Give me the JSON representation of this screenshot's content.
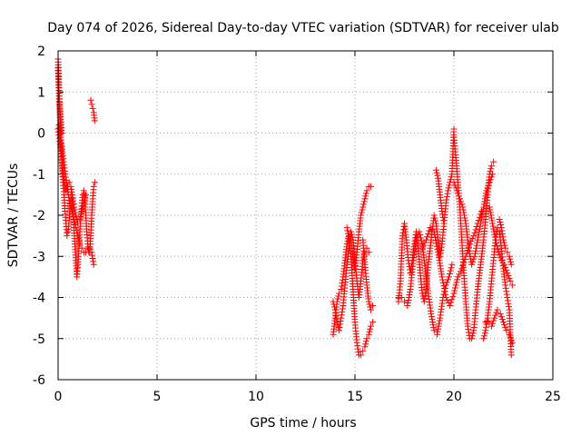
{
  "chart_data": {
    "type": "scatter",
    "title": "Day 074 of 2026, Sidereal Day-to-day VTEC variation (SDTVAR) for receiver ulab",
    "xlabel": "GPS time / hours",
    "ylabel": "SDTVAR / TECUs",
    "xlim": [
      0,
      25
    ],
    "ylim": [
      -6,
      2
    ],
    "xticks": [
      0,
      5,
      10,
      15,
      20,
      25
    ],
    "yticks": [
      -6,
      -5,
      -4,
      -3,
      -2,
      -1,
      0,
      1,
      2
    ],
    "grid": true,
    "marker": "+",
    "color": "#ff0000",
    "series": [
      {
        "name": "SDTVAR",
        "segments": [
          {
            "x": [
              0.0,
              0.05,
              0.1,
              0.15,
              0.2,
              0.25,
              0.3,
              0.35,
              0.4,
              0.45,
              0.5,
              0.55,
              0.6,
              0.65,
              0.7,
              0.75,
              0.8,
              0.85,
              0.9,
              0.95,
              1.0,
              1.05,
              1.1,
              1.15,
              1.2,
              1.25,
              1.3,
              1.35,
              1.4,
              1.45,
              1.5,
              1.55,
              1.6,
              1.65,
              1.7,
              1.75,
              1.8,
              1.85
            ],
            "y": [
              1.6,
              0.9,
              0.3,
              -0.3,
              -0.8,
              -1.2,
              -1.5,
              -1.9,
              -2.2,
              -2.5,
              -2.4,
              -2.2,
              -1.8,
              -1.5,
              -1.6,
              -1.9,
              -2.3,
              -2.7,
              -3.1,
              -3.5,
              -3.2,
              -2.8,
              -2.4,
              -2.0,
              -1.7,
              -1.5,
              -1.4,
              -1.6,
              -2.0,
              -2.4,
              -2.7,
              -2.9,
              -2.9,
              -2.5,
              -2.0,
              -1.6,
              -1.3,
              -1.2
            ]
          },
          {
            "x": [
              0.05,
              0.12,
              0.2,
              0.28,
              0.36,
              0.44,
              0.52,
              0.6,
              0.7,
              0.8,
              0.9,
              1.0,
              1.1,
              1.2,
              1.3,
              1.4,
              1.5,
              1.6,
              1.7,
              1.8
            ],
            "y": [
              0.2,
              -0.1,
              -0.4,
              -0.7,
              -1.0,
              -1.3,
              -1.5,
              -1.7,
              -1.9,
              -2.1,
              -2.3,
              -2.5,
              -2.7,
              -2.8,
              -2.9,
              -2.9,
              -2.8,
              -2.8,
              -2.9,
              -3.2
            ]
          },
          {
            "x": [
              0.0,
              0.08,
              0.16,
              0.24,
              0.32,
              0.4,
              0.48,
              0.56,
              0.64,
              0.72,
              0.8,
              0.9,
              1.0,
              1.1,
              1.2,
              1.3,
              1.4
            ],
            "y": [
              0.1,
              -0.2,
              -0.5,
              -0.9,
              -1.2,
              -1.4,
              -1.3,
              -1.2,
              -1.3,
              -1.5,
              -1.8,
              -2.0,
              -2.2,
              -2.1,
              -1.9,
              -1.7,
              -1.5
            ]
          },
          {
            "x": [
              0.0,
              0.03,
              0.06,
              0.09,
              0.12,
              0.15,
              0.18
            ],
            "y": [
              1.8,
              1.3,
              0.9,
              0.6,
              0.4,
              0.2,
              0.0
            ]
          },
          {
            "x": [
              1.65,
              1.7,
              1.75,
              1.8,
              1.85
            ],
            "y": [
              0.8,
              0.7,
              0.6,
              0.5,
              0.3
            ]
          },
          {
            "x": [
              13.9,
              14.0,
              14.1,
              14.2,
              14.3,
              14.4,
              14.5,
              14.6,
              14.7,
              14.8,
              14.9,
              15.0,
              15.1,
              15.2,
              15.3,
              15.4,
              15.5,
              15.6,
              15.7,
              15.8
            ],
            "y": [
              -4.9,
              -4.5,
              -4.1,
              -3.9,
              -3.8,
              -3.5,
              -3.1,
              -2.7,
              -2.5,
              -2.6,
              -3.0,
              -3.3,
              -2.9,
              -2.4,
              -2.0,
              -1.8,
              -1.6,
              -1.4,
              -1.3,
              -1.3
            ]
          },
          {
            "x": [
              13.9,
              14.0,
              14.1,
              14.2,
              14.3,
              14.4,
              14.5,
              14.6,
              14.7,
              14.8,
              14.9,
              15.0,
              15.1,
              15.2,
              15.3,
              15.4,
              15.5,
              15.6,
              15.7
            ],
            "y": [
              -4.1,
              -4.3,
              -4.6,
              -4.8,
              -4.5,
              -4.2,
              -3.7,
              -3.2,
              -2.8,
              -2.4,
              -2.6,
              -3.1,
              -3.6,
              -4.0,
              -3.6,
              -3.1,
              -2.9,
              -2.8,
              -2.9
            ]
          },
          {
            "x": [
              14.6,
              14.7,
              14.8,
              14.9,
              15.0,
              15.1,
              15.2,
              15.3,
              15.4,
              15.5,
              15.6,
              15.7,
              15.8,
              15.9
            ],
            "y": [
              -2.3,
              -2.6,
              -3.0,
              -3.8,
              -4.6,
              -5.1,
              -5.4,
              -5.4,
              -5.3,
              -5.2,
              -5.0,
              -4.9,
              -4.7,
              -4.6
            ]
          },
          {
            "x": [
              15.4,
              15.5,
              15.6,
              15.7,
              15.8,
              15.9
            ],
            "y": [
              -2.6,
              -3.2,
              -3.7,
              -4.1,
              -4.3,
              -4.2
            ]
          },
          {
            "x": [
              17.2,
              17.3,
              17.4,
              17.5,
              17.6,
              17.7,
              17.8,
              17.9,
              18.0,
              18.1,
              18.2,
              18.3,
              18.4,
              18.5,
              18.6,
              18.7,
              18.8,
              18.9,
              19.0,
              19.1,
              19.2,
              19.3,
              19.4,
              19.5,
              19.6,
              19.7,
              19.8,
              19.9,
              20.0
            ],
            "y": [
              -4.1,
              -3.6,
              -2.5,
              -2.2,
              -2.6,
              -3.1,
              -3.4,
              -3.1,
              -2.7,
              -2.4,
              -2.8,
              -3.4,
              -3.9,
              -4.1,
              -3.8,
              -3.2,
              -2.8,
              -2.4,
              -2.0,
              -2.2,
              -2.6,
              -3.0,
              -2.7,
              -2.2,
              -1.7,
              -1.4,
              -1.2,
              -1.0,
              0.1
            ]
          },
          {
            "x": [
              17.2,
              17.35,
              17.5,
              17.65,
              17.8,
              17.95,
              18.1,
              18.25,
              18.4,
              18.55,
              18.7,
              18.85,
              19.0,
              19.15,
              19.3,
              19.45,
              19.6,
              19.75,
              19.9
            ],
            "y": [
              -4.0,
              -4.0,
              -4.1,
              -4.2,
              -3.8,
              -3.1,
              -2.6,
              -2.4,
              -2.7,
              -3.3,
              -3.9,
              -4.4,
              -4.8,
              -4.9,
              -4.5,
              -4.0,
              -3.7,
              -3.5,
              -3.2
            ]
          },
          {
            "x": [
              18.4,
              18.6,
              18.8,
              19.0,
              19.2,
              19.4,
              19.6,
              19.8,
              20.0,
              20.2,
              20.4,
              20.6,
              20.8,
              21.0,
              21.2,
              21.4
            ],
            "y": [
              -2.8,
              -2.6,
              -2.3,
              -2.4,
              -2.9,
              -3.5,
              -4.0,
              -4.2,
              -3.9,
              -3.5,
              -3.3,
              -3.0,
              -2.7,
              -2.5,
              -2.2,
              -1.9
            ]
          },
          {
            "x": [
              20.0,
              20.1,
              20.2,
              20.3,
              20.4,
              20.5,
              20.6,
              20.7,
              20.8,
              20.9,
              21.0,
              21.1,
              21.2,
              21.3,
              21.4,
              21.5,
              21.6,
              21.7,
              21.8,
              21.9,
              22.0
            ],
            "y": [
              -0.1,
              -0.6,
              -1.2,
              -1.8,
              -2.6,
              -3.4,
              -4.1,
              -4.7,
              -5.0,
              -5.0,
              -4.8,
              -4.3,
              -3.8,
              -3.4,
              -3.0,
              -2.6,
              -2.1,
              -1.5,
              -1.0,
              -0.8,
              -0.7
            ]
          },
          {
            "x": [
              20.0,
              20.15,
              20.3,
              20.45,
              20.6,
              20.75,
              20.9,
              21.05,
              21.2,
              21.35,
              21.5,
              21.65,
              21.8,
              21.95
            ],
            "y": [
              -1.2,
              -1.4,
              -1.6,
              -1.8,
              -2.2,
              -2.8,
              -3.2,
              -3.0,
              -2.6,
              -2.2,
              -1.8,
              -1.4,
              -1.2,
              -1.0
            ]
          },
          {
            "x": [
              21.5,
              21.6,
              21.7,
              21.8,
              21.9,
              22.0,
              22.1,
              22.2,
              22.3,
              22.4,
              22.5,
              22.6,
              22.7,
              22.8,
              22.9
            ],
            "y": [
              -5.0,
              -4.8,
              -4.5,
              -4.1,
              -3.6,
              -3.1,
              -2.6,
              -2.3,
              -2.4,
              -2.8,
              -3.3,
              -3.7,
              -4.0,
              -4.3,
              -5.4
            ]
          },
          {
            "x": [
              21.6,
              21.75,
              21.9,
              22.05,
              22.2,
              22.35,
              22.5,
              22.65,
              22.8,
              22.95
            ],
            "y": [
              -4.6,
              -4.6,
              -4.7,
              -4.5,
              -4.3,
              -4.4,
              -4.6,
              -4.8,
              -4.9,
              -5.1
            ]
          },
          {
            "x": [
              21.8,
              21.95,
              22.1,
              22.25,
              22.4,
              22.55,
              22.7,
              22.85,
              22.95
            ],
            "y": [
              -1.8,
              -2.2,
              -2.6,
              -2.9,
              -3.1,
              -3.2,
              -3.4,
              -3.6,
              -3.7
            ]
          },
          {
            "x": [
              22.3,
              22.4,
              22.5,
              22.6,
              22.7,
              22.8,
              22.9
            ],
            "y": [
              -2.1,
              -2.3,
              -2.6,
              -2.8,
              -2.9,
              -3.0,
              -3.2
            ]
          },
          {
            "x": [
              19.1,
              19.2,
              19.3,
              19.4,
              19.5
            ],
            "y": [
              -0.9,
              -1.1,
              -1.5,
              -1.9,
              -2.2
            ]
          }
        ]
      }
    ]
  }
}
